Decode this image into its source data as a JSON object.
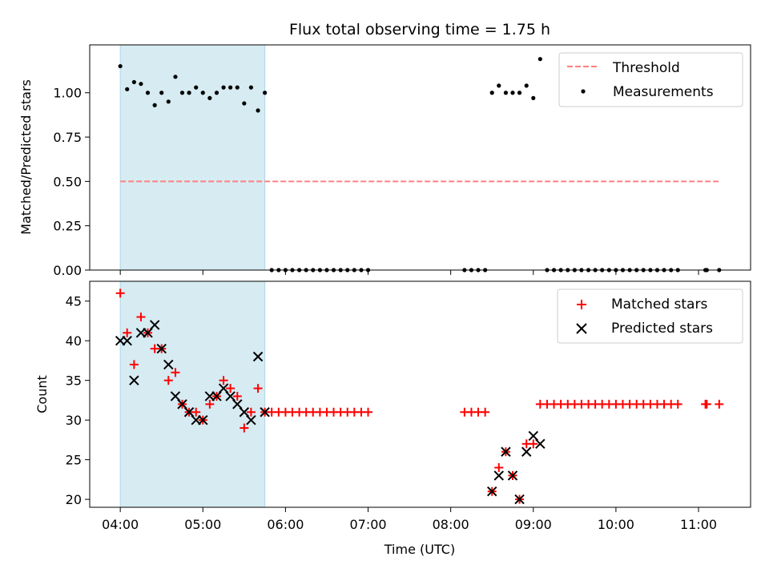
{
  "figure": {
    "title": "Flux total observing time = 1.75 h",
    "xlabel": "Time (UTC)",
    "highlight_color": "#add8e6",
    "x_ticks": [
      "04:00",
      "05:00",
      "06:00",
      "07:00",
      "08:00",
      "09:00",
      "10:00",
      "11:00"
    ]
  },
  "chart_data": [
    {
      "type": "scatter",
      "panel": "top",
      "title": "Flux total observing time = 1.75 h",
      "xlabel": "",
      "ylabel": "Matched/Predicted stars",
      "xlim_hours": [
        3.63,
        11.63
      ],
      "ylim": [
        0,
        1.27
      ],
      "y_ticks": [
        "0.00",
        "0.25",
        "0.50",
        "0.75",
        "1.00"
      ],
      "y_tick_values": [
        0,
        0.25,
        0.5,
        0.75,
        1.0
      ],
      "highlight_span_hours": [
        4.0,
        5.75
      ],
      "legend_position": "top-right",
      "series": [
        {
          "name": "Threshold",
          "kind": "dashed-line",
          "color": "#ff7f7f",
          "x_hours": [
            4.0,
            11.25
          ],
          "y": [
            0.5,
            0.5
          ]
        },
        {
          "name": "Measurements",
          "kind": "points",
          "color": "#000000",
          "x_hours": [
            4.0,
            4.083,
            4.167,
            4.25,
            4.333,
            4.417,
            4.5,
            4.583,
            4.667,
            4.75,
            4.833,
            4.917,
            5.0,
            5.083,
            5.167,
            5.25,
            5.333,
            5.417,
            5.5,
            5.583,
            5.667,
            5.75,
            5.833,
            5.917,
            6.0,
            6.083,
            6.167,
            6.25,
            6.333,
            6.417,
            6.5,
            6.583,
            6.667,
            6.75,
            6.833,
            6.917,
            7.0,
            8.167,
            8.25,
            8.333,
            8.417,
            8.5,
            8.583,
            8.667,
            8.75,
            8.833,
            8.917,
            9.0,
            9.083,
            9.167,
            9.25,
            9.333,
            9.417,
            9.5,
            9.583,
            9.667,
            9.75,
            9.833,
            9.917,
            10.0,
            10.083,
            10.167,
            10.25,
            10.333,
            10.417,
            10.5,
            10.583,
            10.667,
            10.75,
            11.083,
            11.1,
            11.25
          ],
          "y": [
            1.15,
            1.02,
            1.06,
            1.05,
            1.0,
            0.93,
            1.0,
            0.95,
            1.09,
            1.0,
            1.0,
            1.03,
            1.0,
            0.97,
            1.0,
            1.03,
            1.03,
            1.03,
            0.94,
            1.03,
            0.9,
            1.0,
            0,
            0,
            0,
            0,
            0,
            0,
            0,
            0,
            0,
            0,
            0,
            0,
            0,
            0,
            0,
            0,
            0,
            0,
            0,
            1.0,
            1.04,
            1.0,
            1.0,
            1.0,
            1.04,
            0.97,
            1.19,
            0,
            0,
            0,
            0,
            0,
            0,
            0,
            0,
            0,
            0,
            0,
            0,
            0,
            0,
            0,
            0,
            0,
            0,
            0,
            0,
            0,
            0,
            0
          ]
        }
      ]
    },
    {
      "type": "scatter",
      "panel": "bottom",
      "title": "",
      "xlabel": "Time (UTC)",
      "ylabel": "Count",
      "xlim_hours": [
        3.63,
        11.63
      ],
      "ylim": [
        19,
        47.5
      ],
      "y_ticks": [
        "20",
        "25",
        "30",
        "35",
        "40",
        "45"
      ],
      "y_tick_values": [
        20,
        25,
        30,
        35,
        40,
        45
      ],
      "highlight_span_hours": [
        4.0,
        5.75
      ],
      "legend_position": "top-right",
      "series": [
        {
          "name": "Matched stars",
          "marker": "plus",
          "color": "#ff0000",
          "x_hours": [
            4.0,
            4.083,
            4.167,
            4.25,
            4.333,
            4.417,
            4.5,
            4.583,
            4.667,
            4.75,
            4.833,
            4.917,
            5.0,
            5.083,
            5.167,
            5.25,
            5.333,
            5.417,
            5.5,
            5.583,
            5.667,
            5.75,
            5.833,
            5.917,
            6.0,
            6.083,
            6.167,
            6.25,
            6.333,
            6.417,
            6.5,
            6.583,
            6.667,
            6.75,
            6.833,
            6.917,
            7.0,
            8.167,
            8.25,
            8.333,
            8.417,
            8.5,
            8.583,
            8.667,
            8.75,
            8.833,
            8.917,
            9.0,
            9.083,
            9.167,
            9.25,
            9.333,
            9.417,
            9.5,
            9.583,
            9.667,
            9.75,
            9.833,
            9.917,
            10.0,
            10.083,
            10.167,
            10.25,
            10.333,
            10.417,
            10.5,
            10.583,
            10.667,
            10.75,
            11.083,
            11.1,
            11.25
          ],
          "y": [
            46,
            41,
            37,
            43,
            41,
            39,
            39,
            35,
            36,
            32,
            31,
            31,
            30,
            32,
            33,
            35,
            34,
            33,
            29,
            31,
            34,
            31,
            31,
            31,
            31,
            31,
            31,
            31,
            31,
            31,
            31,
            31,
            31,
            31,
            31,
            31,
            31,
            31,
            31,
            31,
            31,
            21,
            24,
            26,
            23,
            20,
            27,
            27,
            32,
            32,
            32,
            32,
            32,
            32,
            32,
            32,
            32,
            32,
            32,
            32,
            32,
            32,
            32,
            32,
            32,
            32,
            32,
            32,
            32,
            32,
            32,
            32
          ]
        },
        {
          "name": "Predicted stars",
          "marker": "x",
          "color": "#000000",
          "x_hours": [
            4.0,
            4.083,
            4.167,
            4.25,
            4.333,
            4.417,
            4.5,
            4.583,
            4.667,
            4.75,
            4.833,
            4.917,
            5.0,
            5.083,
            5.167,
            5.25,
            5.333,
            5.417,
            5.5,
            5.583,
            5.667,
            5.75,
            8.5,
            8.583,
            8.667,
            8.75,
            8.833,
            8.917,
            9.0,
            9.083
          ],
          "y": [
            40,
            40,
            35,
            41,
            41,
            42,
            39,
            37,
            33,
            32,
            31,
            30,
            30,
            33,
            33,
            34,
            33,
            32,
            31,
            30,
            38,
            31,
            21,
            23,
            26,
            23,
            20,
            26,
            28,
            27
          ]
        }
      ]
    }
  ]
}
